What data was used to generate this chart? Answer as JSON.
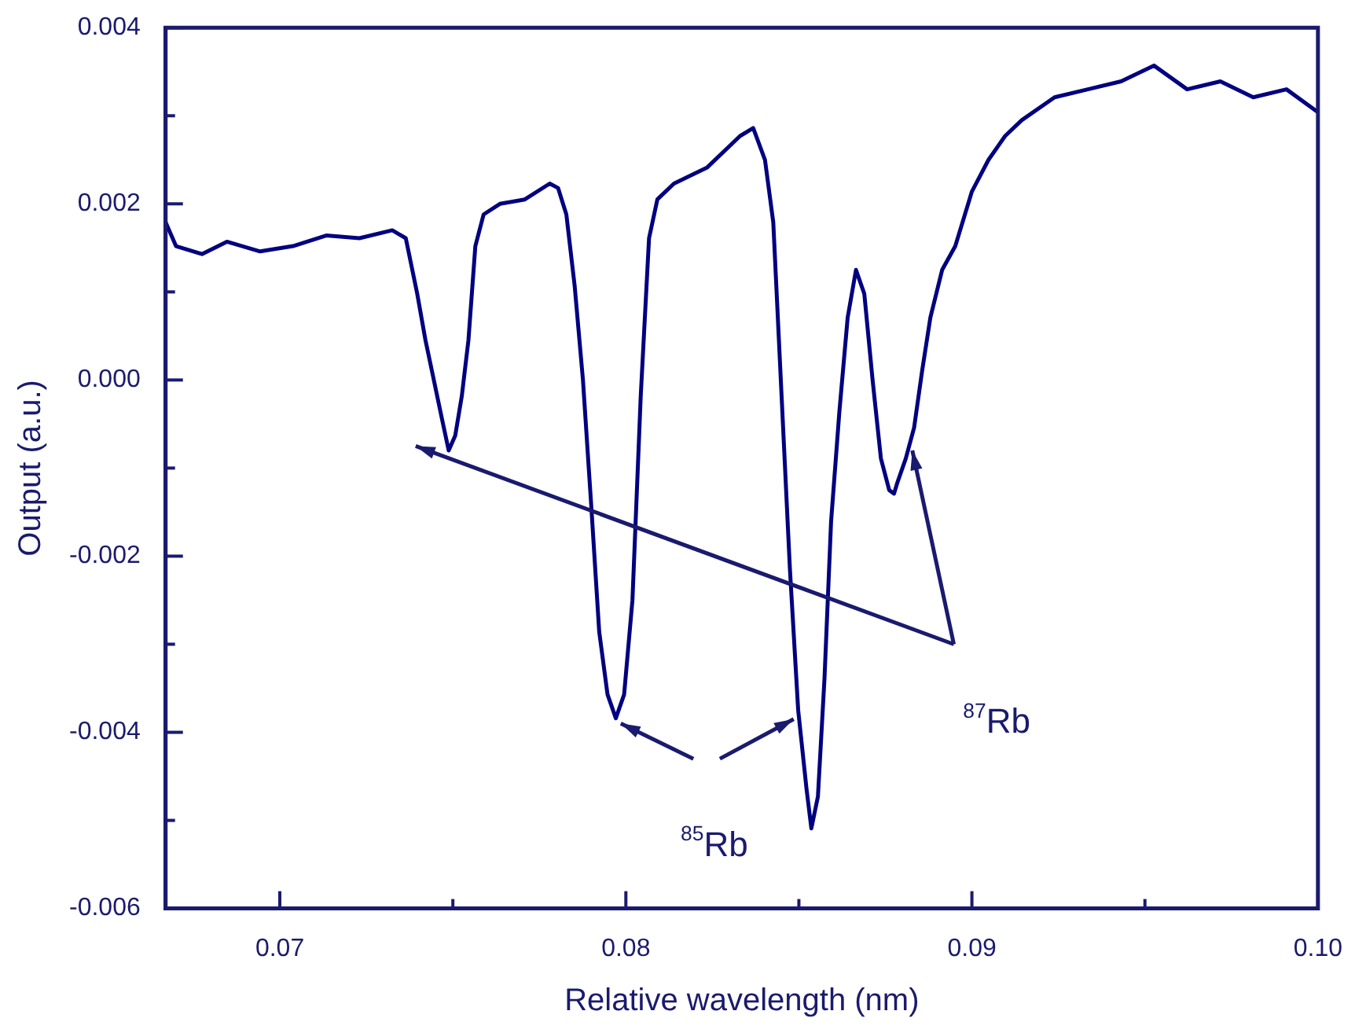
{
  "chart_data": {
    "type": "line",
    "xlabel": "Relative wavelength (nm)",
    "ylabel": "Output (a.u.)",
    "xlim": [
      0.0667,
      0.1
    ],
    "ylim": [
      -0.006,
      0.004
    ],
    "xticks": [
      0.07,
      {
        "value": 0.075,
        "label": null
      },
      0.08,
      {
        "value": 0.085,
        "label": null
      },
      0.09,
      {
        "value": 0.095,
        "label": null
      },
      {
        "value": 0.1,
        "label": "0.10"
      }
    ],
    "yticks": [
      -0.006,
      {
        "value": -0.005,
        "label": null
      },
      -0.004,
      {
        "value": -0.003,
        "label": null
      },
      -0.002,
      {
        "value": -0.001,
        "label": null
      },
      {
        "value": 0,
        "label": "0.000"
      },
      {
        "value": 0.001,
        "label": null
      },
      0.002,
      {
        "value": 0.003,
        "label": null
      },
      0.004
    ],
    "marker": "none",
    "line_style": "solid",
    "annotations": [
      "$^{85}$Rb",
      "$^{87}$Rb"
    ],
    "series": [
      {
        "color": "#000080",
        "x": [
          0.0667,
          0.067,
          0.06775,
          0.06847,
          0.06943,
          0.07038,
          0.07134,
          0.0723,
          0.07325,
          0.07364,
          0.07397,
          0.07421,
          0.07445,
          0.07469,
          0.07488,
          0.07507,
          0.07526,
          0.07545,
          0.07565,
          0.07589,
          0.07636,
          0.07708,
          0.0778,
          0.07804,
          0.07828,
          0.07852,
          0.07876,
          0.079,
          0.07923,
          0.07947,
          0.07971,
          0.07995,
          0.08019,
          0.08043,
          0.08067,
          0.08091,
          0.08139,
          0.08234,
          0.0833,
          0.08368,
          0.08402,
          0.08426,
          0.0845,
          0.08474,
          0.08498,
          0.08522,
          0.08536,
          0.08555,
          0.08574,
          0.08593,
          0.08617,
          0.08641,
          0.08665,
          0.08689,
          0.08713,
          0.08737,
          0.08761,
          0.08775,
          0.08785,
          0.08809,
          0.08833,
          0.08856,
          0.0888,
          0.08914,
          0.08952,
          0.09,
          0.09048,
          0.09096,
          0.09144,
          0.09239,
          0.09335,
          0.09431,
          0.09526,
          0.09622,
          0.09718,
          0.09813,
          0.09909,
          0.1
        ],
        "values": [
          0.00179,
          0.00152,
          0.00143,
          0.00157,
          0.00146,
          0.00152,
          0.00164,
          0.00161,
          0.0017,
          0.00161,
          0.00098,
          0.00045,
          0,
          -0.00045,
          -0.0008,
          -0.00063,
          -0.00018,
          0.00045,
          0.00152,
          0.00188,
          0.002,
          0.00205,
          0.00223,
          0.00218,
          0.00188,
          0.00107,
          0,
          -0.00143,
          -0.00286,
          -0.00357,
          -0.00384,
          -0.00357,
          -0.0025,
          -0.00018,
          0.00161,
          0.00205,
          0.00223,
          0.00241,
          0.00277,
          0.00286,
          0.0025,
          0.00179,
          -0.00018,
          -0.00214,
          -0.00375,
          -0.00464,
          -0.00509,
          -0.00473,
          -0.00339,
          -0.00161,
          -0.00036,
          0.00071,
          0.00125,
          0.00098,
          0,
          -0.00089,
          -0.00125,
          -0.00129,
          -0.00116,
          -0.00089,
          -0.00054,
          0.0001,
          0.00071,
          0.00125,
          0.00152,
          0.00214,
          0.0025,
          0.00277,
          0.00295,
          0.00321,
          0.0033,
          0.00339,
          0.00357,
          0.0033,
          0.00339,
          0.00321,
          0.0033,
          0.00304
        ]
      }
    ]
  }
}
